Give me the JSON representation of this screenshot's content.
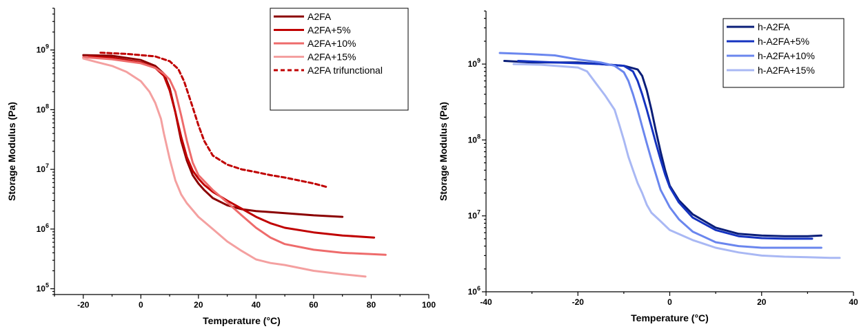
{
  "chart_data": [
    {
      "type": "line",
      "title": "",
      "xlabel": "Temperature (°C)",
      "ylabel": "Storage Modulus (Pa)",
      "xlim": [
        -30,
        100
      ],
      "ylim": [
        80000,
        5000000000
      ],
      "yscale": "log",
      "x_ticks": [
        -20,
        0,
        20,
        40,
        60,
        80,
        100
      ],
      "x_tick_labels": [
        "-20",
        "0",
        "20",
        "40",
        "60",
        "80",
        "100"
      ],
      "y_ticks": [
        100000,
        1000000,
        10000000,
        100000000,
        1000000000
      ],
      "y_tick_labels": [
        {
          "base": "10",
          "exp": "5"
        },
        {
          "base": "10",
          "exp": "6"
        },
        {
          "base": "10",
          "exp": "7"
        },
        {
          "base": "10",
          "exp": "8"
        },
        {
          "base": "10",
          "exp": "9"
        }
      ],
      "grid": false,
      "legend_position": "top-right",
      "series": [
        {
          "name": "A2FA",
          "color": "#8b0000",
          "dash": "solid",
          "x": [
            -20,
            -10,
            0,
            5,
            8,
            10,
            12,
            14,
            16,
            18,
            20,
            22,
            25,
            30,
            35,
            40,
            50,
            60,
            70
          ],
          "y": [
            820000000,
            800000000,
            680000000,
            540000000,
            400000000,
            230000000,
            90000000,
            30000000,
            14000000,
            8000000,
            5800000,
            4500000,
            3300000,
            2500000,
            2150000,
            2000000,
            1850000,
            1700000,
            1600000
          ]
        },
        {
          "name": "A2FA+5%",
          "color": "#c00000",
          "dash": "solid",
          "x": [
            -18,
            -10,
            0,
            5,
            8,
            10,
            12,
            14,
            16,
            18,
            20,
            22,
            25,
            30,
            35,
            40,
            45,
            50,
            60,
            70,
            81
          ],
          "y": [
            780000000,
            740000000,
            620000000,
            500000000,
            370000000,
            210000000,
            90000000,
            35000000,
            16000000,
            9500000,
            7000000,
            5500000,
            4200000,
            3000000,
            2200000,
            1600000,
            1250000,
            1050000,
            880000,
            780000,
            720000
          ]
        },
        {
          "name": "A2FA+10%",
          "color": "#ee6b6b",
          "dash": "solid",
          "x": [
            -20,
            -10,
            0,
            5,
            8,
            10,
            12,
            14,
            16,
            18,
            20,
            25,
            30,
            35,
            40,
            45,
            50,
            60,
            70,
            80,
            85
          ],
          "y": [
            760000000,
            700000000,
            600000000,
            500000000,
            400000000,
            320000000,
            200000000,
            80000000,
            30000000,
            13000000,
            8000000,
            4500000,
            2800000,
            1700000,
            1050000,
            720000,
            560000,
            450000,
            400000,
            380000,
            370000
          ]
        },
        {
          "name": "A2FA+15%",
          "color": "#f4a0a0",
          "dash": "solid",
          "x": [
            -20,
            -15,
            -10,
            -5,
            0,
            3,
            5,
            7,
            8,
            10,
            12,
            14,
            16,
            20,
            25,
            30,
            35,
            40,
            45,
            50,
            60,
            70,
            78
          ],
          "y": [
            720000000,
            620000000,
            540000000,
            430000000,
            300000000,
            200000000,
            130000000,
            70000000,
            40000000,
            15000000,
            6500000,
            3800000,
            2700000,
            1600000,
            1000000,
            620000,
            430000,
            310000,
            270000,
            250000,
            200000,
            175000,
            160000
          ]
        },
        {
          "name": "A2FA trifunctional",
          "color": "#c00000",
          "dash": "dashed",
          "x": [
            -14,
            -5,
            0,
            5,
            10,
            13,
            15,
            18,
            20,
            22,
            25,
            30,
            35,
            40,
            45,
            50,
            55,
            60,
            65
          ],
          "y": [
            900000000,
            860000000,
            820000000,
            780000000,
            650000000,
            480000000,
            300000000,
            110000000,
            55000000,
            30000000,
            17000000,
            12000000,
            10000000,
            9000000,
            8000000,
            7300000,
            6500000,
            5800000,
            5000000
          ]
        }
      ]
    },
    {
      "type": "line",
      "title": "",
      "xlabel": "Temperature (°C)",
      "ylabel": "Storage Modulus (Pa)",
      "xlim": [
        -40,
        40
      ],
      "ylim": [
        1000000,
        5000000000
      ],
      "yscale": "log",
      "x_ticks": [
        -40,
        -20,
        0,
        20,
        40
      ],
      "x_tick_labels": [
        "-40",
        "-20",
        "0",
        "20",
        "40"
      ],
      "y_ticks": [
        1000000,
        10000000,
        100000000,
        1000000000
      ],
      "y_tick_labels": [
        {
          "base": "10",
          "exp": "6"
        },
        {
          "base": "10",
          "exp": "7"
        },
        {
          "base": "10",
          "exp": "8"
        },
        {
          "base": "10",
          "exp": "9"
        }
      ],
      "grid": false,
      "legend_position": "top-right",
      "series": [
        {
          "name": "h-A2FA",
          "color": "#0a1e78",
          "dash": "solid",
          "x": [
            -36,
            -30,
            -20,
            -10,
            -7,
            -6,
            -5,
            -4,
            -3,
            -2,
            -1,
            0,
            2,
            5,
            10,
            15,
            20,
            25,
            30,
            33
          ],
          "y": [
            1100000000,
            1050000000,
            1050000000,
            950000000,
            850000000,
            700000000,
            450000000,
            250000000,
            130000000,
            70000000,
            40000000,
            25000000,
            16000000,
            10500000,
            7000000,
            5800000,
            5500000,
            5400000,
            5400000,
            5500000
          ]
        },
        {
          "name": "h-A2FA+5%",
          "color": "#1533c0",
          "dash": "solid",
          "x": [
            -33,
            -25,
            -15,
            -10,
            -8,
            -7,
            -6,
            -5,
            -4,
            -3,
            -2,
            -1,
            0,
            2,
            5,
            10,
            15,
            20,
            25,
            31
          ],
          "y": [
            1100000000,
            1050000000,
            1000000000,
            950000000,
            800000000,
            600000000,
            400000000,
            250000000,
            150000000,
            90000000,
            55000000,
            35000000,
            24000000,
            15000000,
            9500000,
            6500000,
            5400000,
            5100000,
            5000000,
            5000000
          ]
        },
        {
          "name": "h-A2FA+10%",
          "color": "#6a86ee",
          "dash": "solid",
          "x": [
            -37,
            -30,
            -25,
            -20,
            -15,
            -12,
            -10,
            -9,
            -8,
            -7,
            -6,
            -5,
            -4,
            -3,
            -2,
            0,
            2,
            5,
            10,
            15,
            20,
            25,
            30,
            33
          ],
          "y": [
            1400000000,
            1350000000,
            1300000000,
            1150000000,
            1050000000,
            950000000,
            780000000,
            600000000,
            400000000,
            250000000,
            150000000,
            90000000,
            55000000,
            35000000,
            22000000,
            13000000,
            9000000,
            6200000,
            4500000,
            4000000,
            3800000,
            3800000,
            3800000,
            3800000
          ]
        },
        {
          "name": "h-A2FA+15%",
          "color": "#a9b8f4",
          "dash": "solid",
          "x": [
            -34,
            -28,
            -20,
            -18,
            -16,
            -14,
            -12,
            -11,
            -10,
            -9,
            -8,
            -7,
            -6,
            -5,
            -4,
            -2,
            0,
            5,
            10,
            15,
            20,
            25,
            30,
            35,
            37
          ],
          "y": [
            1000000000,
            980000000,
            900000000,
            800000000,
            550000000,
            380000000,
            250000000,
            160000000,
            100000000,
            60000000,
            40000000,
            27000000,
            20000000,
            14000000,
            11000000,
            8500000,
            6500000,
            4800000,
            3800000,
            3300000,
            3000000,
            2900000,
            2850000,
            2800000,
            2800000
          ]
        }
      ]
    }
  ]
}
